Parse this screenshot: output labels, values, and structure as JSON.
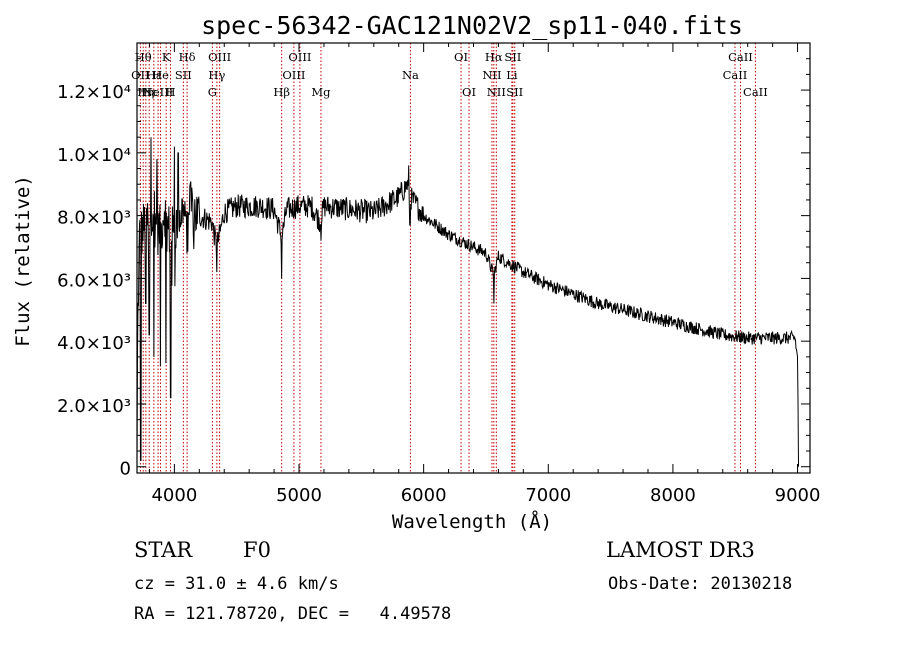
{
  "chart_data": {
    "type": "line",
    "title": "spec-56342-GAC121N02V2_sp11-040.fits",
    "xlabel": "Wavelength (Å)",
    "ylabel": "Flux (relative)",
    "xlim": [
      3700,
      9100
    ],
    "ylim": [
      -200,
      13500
    ],
    "xticks": [
      4000,
      5000,
      6000,
      7000,
      8000,
      9000
    ],
    "yticks": [
      {
        "value": 0,
        "label": "0"
      },
      {
        "value": 2000,
        "label": "2.0×10³"
      },
      {
        "value": 4000,
        "label": "4.0×10³"
      },
      {
        "value": 6000,
        "label": "6.0×10³"
      },
      {
        "value": 8000,
        "label": "8.0×10³"
      },
      {
        "value": 10000,
        "label": "1.0×10⁴"
      },
      {
        "value": 12000,
        "label": "1.2×10⁴"
      }
    ],
    "spectrum_anchor_points": [
      [
        3700,
        0
      ],
      [
        3705,
        4300
      ],
      [
        3720,
        7300
      ],
      [
        3760,
        7700
      ],
      [
        3800,
        7900
      ],
      [
        3830,
        8500
      ],
      [
        3850,
        7800
      ],
      [
        3890,
        7400
      ],
      [
        3920,
        8300
      ],
      [
        3950,
        7600
      ],
      [
        3970,
        7400
      ],
      [
        4000,
        7500
      ],
      [
        4050,
        8100
      ],
      [
        4100,
        8300
      ],
      [
        4200,
        8000
      ],
      [
        4300,
        7800
      ],
      [
        4340,
        7000
      ],
      [
        4400,
        8100
      ],
      [
        4500,
        8300
      ],
      [
        4600,
        8300
      ],
      [
        4700,
        8300
      ],
      [
        4800,
        8200
      ],
      [
        4861,
        7300
      ],
      [
        4900,
        8200
      ],
      [
        5000,
        8300
      ],
      [
        5100,
        8300
      ],
      [
        5170,
        7800
      ],
      [
        5200,
        8300
      ],
      [
        5400,
        8200
      ],
      [
        5600,
        8100
      ],
      [
        5800,
        8600
      ],
      [
        5870,
        9000
      ],
      [
        5890,
        8600
      ],
      [
        5950,
        8300
      ],
      [
        6000,
        8000
      ],
      [
        6100,
        7700
      ],
      [
        6200,
        7400
      ],
      [
        6300,
        7200
      ],
      [
        6400,
        7000
      ],
      [
        6500,
        6800
      ],
      [
        6563,
        6100
      ],
      [
        6600,
        6700
      ],
      [
        6800,
        6200
      ],
      [
        7000,
        5800
      ],
      [
        7200,
        5500
      ],
      [
        7400,
        5200
      ],
      [
        7600,
        5000
      ],
      [
        7800,
        4800
      ],
      [
        8000,
        4600
      ],
      [
        8200,
        4400
      ],
      [
        8400,
        4200
      ],
      [
        8600,
        4100
      ],
      [
        8800,
        4100
      ],
      [
        8980,
        4100
      ],
      [
        9000,
        3500
      ],
      [
        9010,
        0
      ]
    ],
    "spectrum_dips": [
      {
        "x": 3730,
        "y": 200
      },
      {
        "x": 3770,
        "y": 5200
      },
      {
        "x": 3798,
        "y": 4200
      },
      {
        "x": 3835,
        "y": 3500
      },
      {
        "x": 3889,
        "y": 3200
      },
      {
        "x": 3933,
        "y": 3300
      },
      {
        "x": 3970,
        "y": 2200
      },
      {
        "x": 4101,
        "y": 6800
      },
      {
        "x": 4340,
        "y": 6200
      },
      {
        "x": 4861,
        "y": 6000
      },
      {
        "x": 5175,
        "y": 7200
      },
      {
        "x": 5890,
        "y": 7700
      },
      {
        "x": 6563,
        "y": 5200
      }
    ],
    "spectrum_spikes": [
      {
        "x": 3812,
        "y": 10500
      },
      {
        "x": 3860,
        "y": 9800
      },
      {
        "x": 4000,
        "y": 10200
      },
      {
        "x": 4030,
        "y": 10000
      },
      {
        "x": 5880,
        "y": 9600
      }
    ],
    "line_markers": [
      {
        "wavelength": 3727,
        "label": "OII",
        "row": 1
      },
      {
        "wavelength": 3750,
        "label": "Hθ",
        "row": 0
      },
      {
        "wavelength": 3771,
        "label": "Hη",
        "row": 2
      },
      {
        "wavelength": 3798,
        "label": "Hε",
        "row": 2
      },
      {
        "wavelength": 3835,
        "label": "Hε",
        "row": 1
      },
      {
        "wavelength": 3869,
        "label": "NeIII",
        "row": 2
      },
      {
        "wavelength": 3889,
        "label": "He",
        "row": 1
      },
      {
        "wavelength": 3934,
        "label": "K",
        "row": 0
      },
      {
        "wavelength": 3969,
        "label": "H",
        "row": 2
      },
      {
        "wavelength": 4072,
        "label": "SII",
        "row": 1
      },
      {
        "wavelength": 4102,
        "label": "Hδ",
        "row": 0
      },
      {
        "wavelength": 4305,
        "label": "G",
        "row": 2
      },
      {
        "wavelength": 4341,
        "label": "Hγ",
        "row": 1
      },
      {
        "wavelength": 4363,
        "label": "OIII",
        "row": 0
      },
      {
        "wavelength": 4861,
        "label": "Hβ",
        "row": 2
      },
      {
        "wavelength": 4959,
        "label": "OIII",
        "row": 1
      },
      {
        "wavelength": 5007,
        "label": "OIII",
        "row": 0
      },
      {
        "wavelength": 5176,
        "label": "Mg",
        "row": 2
      },
      {
        "wavelength": 5894,
        "label": "Na",
        "row": 1
      },
      {
        "wavelength": 6300,
        "label": "OI",
        "row": 0
      },
      {
        "wavelength": 6364,
        "label": "OI",
        "row": 2
      },
      {
        "wavelength": 6548,
        "label": "NII",
        "row": 1
      },
      {
        "wavelength": 6563,
        "label": "Hα",
        "row": 0
      },
      {
        "wavelength": 6583,
        "label": "NII",
        "row": 2
      },
      {
        "wavelength": 6708,
        "label": "Li",
        "row": 1
      },
      {
        "wavelength": 6716,
        "label": "SII",
        "row": 0
      },
      {
        "wavelength": 6731,
        "label": "SII",
        "row": 2
      },
      {
        "wavelength": 8498,
        "label": "CaII",
        "row": 1
      },
      {
        "wavelength": 8542,
        "label": "CaII",
        "row": 0
      },
      {
        "wavelength": 8662,
        "label": "CaII",
        "row": 2
      }
    ],
    "line_marker_color": "#c00000"
  },
  "info": {
    "class_label": "STAR",
    "subclass": "F0",
    "survey": "LAMOST DR3",
    "cz": "cz = 31.0 ± 4.6 km/s",
    "obs_date": "Obs-Date: 20130218",
    "coords": "RA = 121.78720, DEC =   4.49578"
  }
}
